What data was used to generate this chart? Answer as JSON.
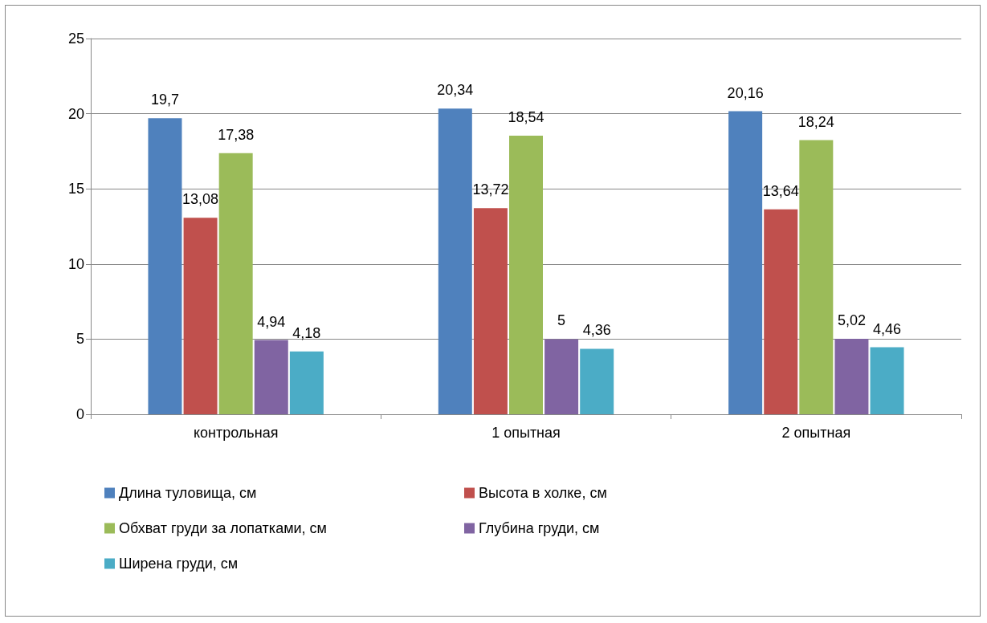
{
  "chart_data": {
    "type": "bar",
    "categories": [
      "контрольная",
      "1 опытная",
      "2 опытная"
    ],
    "series": [
      {
        "name": "Длина туловища, см",
        "color": "#4f81bd",
        "values": [
          19.7,
          20.34,
          20.16
        ],
        "value_labels": [
          "19,7",
          "20,34",
          "20,16"
        ]
      },
      {
        "name": "Высота в холке, см",
        "color": "#c0504d",
        "values": [
          13.08,
          13.72,
          13.64
        ],
        "value_labels": [
          "13,08",
          "13,72",
          "13,64"
        ]
      },
      {
        "name": "Обхват груди за лопатками, см",
        "color": "#9bbb59",
        "values": [
          17.38,
          18.54,
          18.24
        ],
        "value_labels": [
          "17,38",
          "18,54",
          "18,24"
        ]
      },
      {
        "name": "Глубина груди, см",
        "color": "#8064a2",
        "values": [
          4.94,
          5,
          5.02
        ],
        "value_labels": [
          "4,94",
          "5",
          "5,02"
        ]
      },
      {
        "name": "Ширена груди, см",
        "color": "#4bacc6",
        "values": [
          4.18,
          4.36,
          4.46
        ],
        "value_labels": [
          "4,18",
          "4,36",
          "4,46"
        ]
      }
    ],
    "ylim": [
      0,
      25
    ],
    "yticks": [
      0,
      5,
      10,
      15,
      20,
      25
    ],
    "grid": "y",
    "legend": "bottom"
  }
}
